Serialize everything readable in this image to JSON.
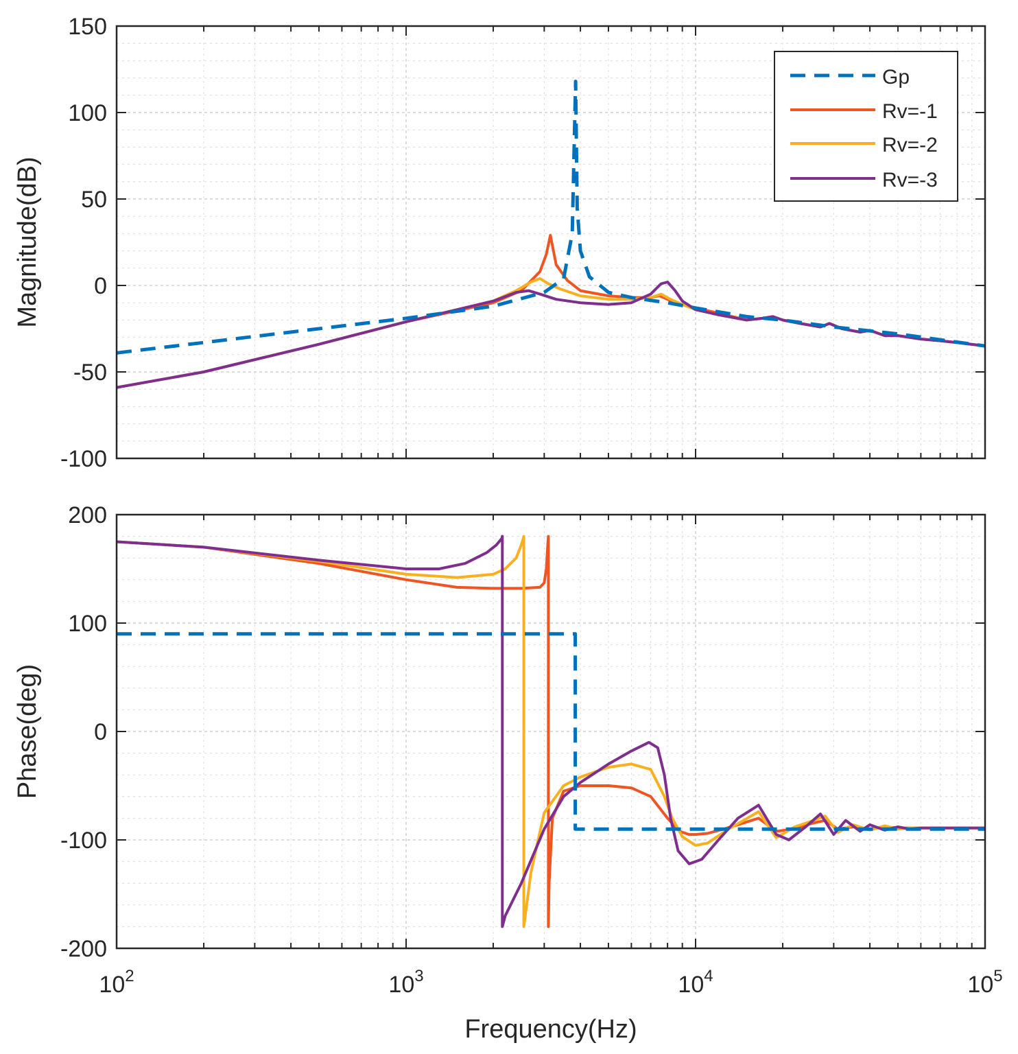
{
  "chart_data": [
    {
      "type": "line",
      "title": "",
      "xlabel": "",
      "ylabel": "Magnitude(dB)",
      "xscale": "log",
      "xlim": [
        100,
        100000
      ],
      "ylim": [
        -100,
        150
      ],
      "yticks": [
        "-100",
        "-50",
        "0",
        "50",
        "100",
        "150"
      ],
      "grid": true,
      "legend": {
        "placement": "top-right",
        "entries": [
          {
            "name": "Gp",
            "color": "#0072BD",
            "style": "dashed"
          },
          {
            "name": "Rv=-1",
            "color": "#EE5522",
            "style": "solid"
          },
          {
            "name": "Rv=-2",
            "color": "#F9B020",
            "style": "solid"
          },
          {
            "name": "Rv=-3",
            "color": "#7E2F8E",
            "style": "solid"
          }
        ]
      },
      "series": [
        {
          "name": "Gp",
          "color": "#0072BD",
          "style": "dashed",
          "x": [
            100,
            200,
            500,
            1000,
            2000,
            3000,
            3500,
            3750,
            3850,
            3900,
            4000,
            4300,
            5000,
            6000,
            8000,
            10000,
            15000,
            20000,
            30000,
            50000,
            100000
          ],
          "y": [
            -39,
            -33,
            -25,
            -19,
            -12,
            -4,
            4,
            30,
            118,
            45,
            20,
            5,
            -4,
            -7,
            -10,
            -13,
            -18,
            -20,
            -24,
            -28,
            -35
          ]
        },
        {
          "name": "Rv=-1",
          "color": "#EE5522",
          "style": "solid",
          "x": [
            100,
            200,
            500,
            1000,
            2000,
            2500,
            2900,
            3050,
            3150,
            3300,
            3600,
            4000,
            5000,
            6000,
            7000,
            7500,
            8000,
            9000,
            10000,
            12000,
            15000,
            17000,
            18500,
            20000,
            23000,
            27000,
            29000,
            32000,
            37000,
            40000,
            45000,
            50000,
            60000,
            70000,
            80000,
            100000
          ],
          "y": [
            -59,
            -50,
            -34,
            -21,
            -10,
            -3,
            8,
            18,
            29,
            12,
            3,
            -3,
            -6,
            -7,
            -7,
            -6,
            -8,
            -11,
            -13,
            -16,
            -20,
            -19,
            -18,
            -20,
            -22,
            -24,
            -22,
            -25,
            -27,
            -26,
            -29,
            -29,
            -31,
            -32,
            -33,
            -35
          ]
        },
        {
          "name": "Rv=-2",
          "color": "#F9B020",
          "style": "solid",
          "x": [
            100,
            200,
            500,
            1000,
            2000,
            2400,
            2700,
            2900,
            3100,
            3400,
            4000,
            5000,
            6000,
            7000,
            7600,
            8200,
            9000,
            10000,
            12000,
            15000,
            17000,
            18500,
            20000,
            23000,
            27000,
            29000,
            32000,
            37000,
            40000,
            45000,
            50000,
            60000,
            70000,
            80000,
            100000
          ],
          "y": [
            -59,
            -50,
            -34,
            -21,
            -9,
            -3,
            2,
            4,
            1,
            -2,
            -6,
            -8,
            -8,
            -7,
            -5,
            -8,
            -11,
            -14,
            -17,
            -20,
            -19,
            -18,
            -20,
            -22,
            -24,
            -22,
            -25,
            -27,
            -26,
            -29,
            -29,
            -31,
            -32,
            -33,
            -35
          ]
        },
        {
          "name": "Rv=-3",
          "color": "#7E2F8E",
          "style": "solid",
          "x": [
            100,
            200,
            500,
            1000,
            2000,
            2400,
            2650,
            2900,
            3300,
            4000,
            5000,
            6000,
            7000,
            7600,
            8000,
            8500,
            9000,
            10000,
            12000,
            15000,
            17000,
            18500,
            20000,
            23000,
            27000,
            29000,
            32000,
            37000,
            40000,
            45000,
            50000,
            60000,
            70000,
            80000,
            100000
          ],
          "y": [
            -59,
            -50,
            -34,
            -21,
            -9,
            -4,
            -3,
            -5,
            -8,
            -10,
            -11,
            -10,
            -5,
            1,
            2,
            -3,
            -9,
            -14,
            -17,
            -20,
            -19,
            -18,
            -20,
            -22,
            -24,
            -22,
            -25,
            -27,
            -26,
            -29,
            -29,
            -31,
            -32,
            -33,
            -35
          ]
        }
      ]
    },
    {
      "type": "line",
      "title": "",
      "xlabel": "Frequency(Hz)",
      "ylabel": "Phase(deg)",
      "xscale": "log",
      "xlim": [
        100,
        100000
      ],
      "ylim": [
        -200,
        200
      ],
      "yticks": [
        "-200",
        "-100",
        "0",
        "100",
        "200"
      ],
      "xticks": [
        {
          "value": 100,
          "base": "10",
          "exp": "2"
        },
        {
          "value": 1000,
          "base": "10",
          "exp": "3"
        },
        {
          "value": 10000,
          "base": "10",
          "exp": "4"
        },
        {
          "value": 100000,
          "base": "10",
          "exp": "5"
        }
      ],
      "grid": true,
      "series": [
        {
          "name": "Gp",
          "color": "#0072BD",
          "style": "dashed",
          "x": [
            100,
            3840,
            3840,
            100000
          ],
          "y": [
            90,
            90,
            -90,
            -90
          ]
        },
        {
          "name": "Rv=-1",
          "color": "#EE5522",
          "style": "solid",
          "x": [
            100,
            200,
            500,
            1000,
            1500,
            2000,
            2500,
            2900,
            3000,
            3050,
            3090,
            3100,
            3100,
            3120,
            3200,
            3500,
            4000,
            5000,
            6000,
            7000,
            8000,
            8800,
            9500,
            10000,
            11000,
            12500,
            14000,
            16500,
            19000,
            22000,
            25000,
            28000,
            31000,
            35000,
            40000,
            45000,
            50000,
            55000,
            60000,
            70000,
            80000,
            100000
          ],
          "y": [
            175,
            170,
            155,
            140,
            133,
            132,
            132,
            133,
            137,
            150,
            175,
            180,
            -180,
            -140,
            -80,
            -55,
            -50,
            -50,
            -52,
            -60,
            -80,
            -92,
            -95,
            -95,
            -94,
            -90,
            -86,
            -80,
            -92,
            -90,
            -85,
            -82,
            -90,
            -88,
            -90,
            -88,
            -89,
            -89,
            -89,
            -89,
            -89,
            -89
          ]
        },
        {
          "name": "Rv=-2",
          "color": "#F9B020",
          "style": "solid",
          "x": [
            100,
            200,
            500,
            1000,
            1500,
            2000,
            2200,
            2400,
            2500,
            2540,
            2550,
            2550,
            2580,
            2700,
            3000,
            3500,
            4000,
            5000,
            6000,
            7000,
            7800,
            8300,
            9000,
            10000,
            11000,
            13000,
            16500,
            19000,
            22000,
            25000,
            28000,
            31000,
            35000,
            40000,
            45000,
            50000,
            55000,
            60000,
            70000,
            80000,
            100000
          ],
          "y": [
            175,
            170,
            157,
            145,
            142,
            145,
            150,
            160,
            172,
            178,
            180,
            -180,
            -170,
            -130,
            -75,
            -50,
            -42,
            -33,
            -30,
            -35,
            -60,
            -80,
            -97,
            -105,
            -103,
            -90,
            -74,
            -98,
            -88,
            -83,
            -78,
            -93,
            -86,
            -91,
            -87,
            -90,
            -89,
            -89,
            -89,
            -89,
            -89
          ]
        },
        {
          "name": "Rv=-3",
          "color": "#7E2F8E",
          "style": "solid",
          "x": [
            100,
            200,
            500,
            1000,
            1300,
            1600,
            1900,
            2050,
            2140,
            2150,
            2150,
            2200,
            2500,
            3000,
            3500,
            4000,
            5000,
            6000,
            6900,
            7400,
            7800,
            8200,
            8700,
            9500,
            10500,
            12000,
            14000,
            16500,
            19000,
            21000,
            24000,
            27000,
            30000,
            33000,
            37000,
            40000,
            45000,
            50000,
            55000,
            60000,
            70000,
            80000,
            100000
          ],
          "y": [
            175,
            170,
            158,
            150,
            150,
            155,
            165,
            172,
            178,
            180,
            -180,
            -170,
            -140,
            -90,
            -60,
            -47,
            -30,
            -18,
            -10,
            -15,
            -40,
            -80,
            -110,
            -122,
            -118,
            -100,
            -80,
            -68,
            -95,
            -100,
            -88,
            -76,
            -95,
            -82,
            -92,
            -86,
            -91,
            -88,
            -90,
            -89,
            -89,
            -89,
            -89
          ]
        }
      ]
    }
  ]
}
